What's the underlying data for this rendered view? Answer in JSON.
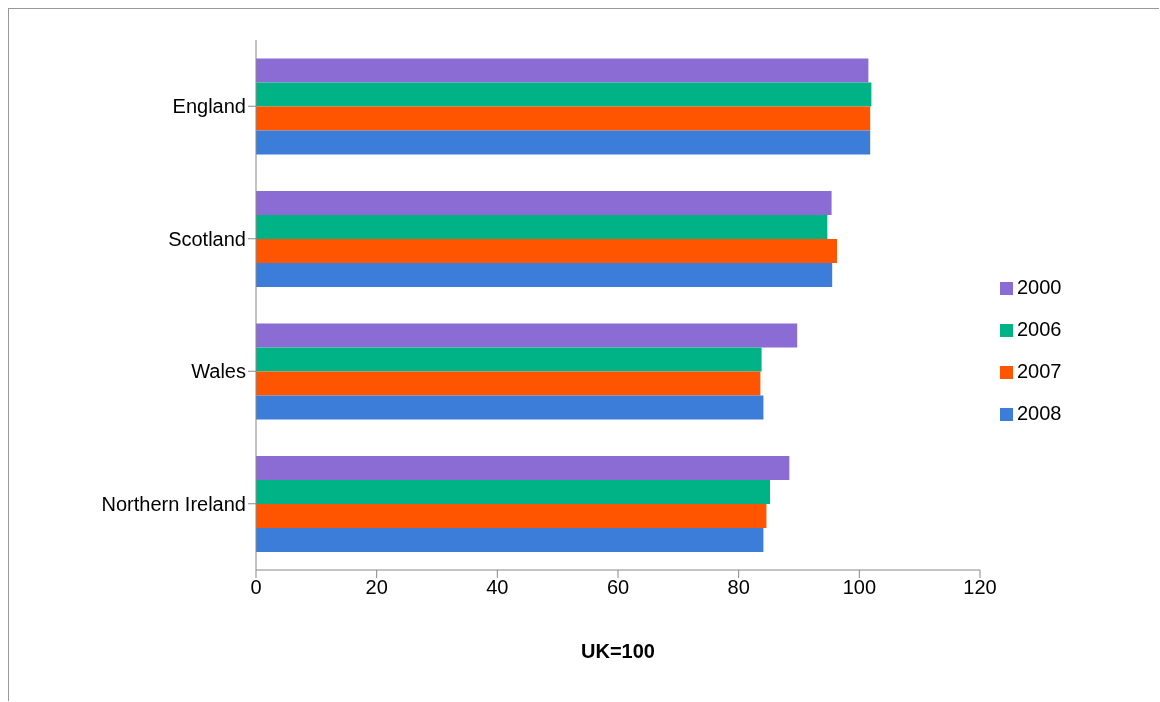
{
  "chart_data": {
    "type": "bar",
    "orientation": "horizontal",
    "xlabel": "UK=100",
    "categories": [
      "England",
      "Scotland",
      "Wales",
      "Northern Ireland"
    ],
    "series": [
      {
        "name": "2000",
        "color": "#8b6bd4",
        "values": [
          101.5,
          95.4,
          89.7,
          88.4
        ]
      },
      {
        "name": "2006",
        "color": "#00b386",
        "values": [
          102.0,
          94.7,
          83.8,
          85.2
        ]
      },
      {
        "name": "2007",
        "color": "#ff5500",
        "values": [
          101.8,
          96.3,
          83.6,
          84.6
        ]
      },
      {
        "name": "2008",
        "color": "#3b7dd8",
        "values": [
          101.8,
          95.5,
          84.1,
          84.1
        ]
      }
    ],
    "xlim": [
      0,
      120
    ],
    "xticks": [
      0,
      20,
      40,
      60,
      80,
      100,
      120
    ],
    "grid": false,
    "legend": "right"
  }
}
